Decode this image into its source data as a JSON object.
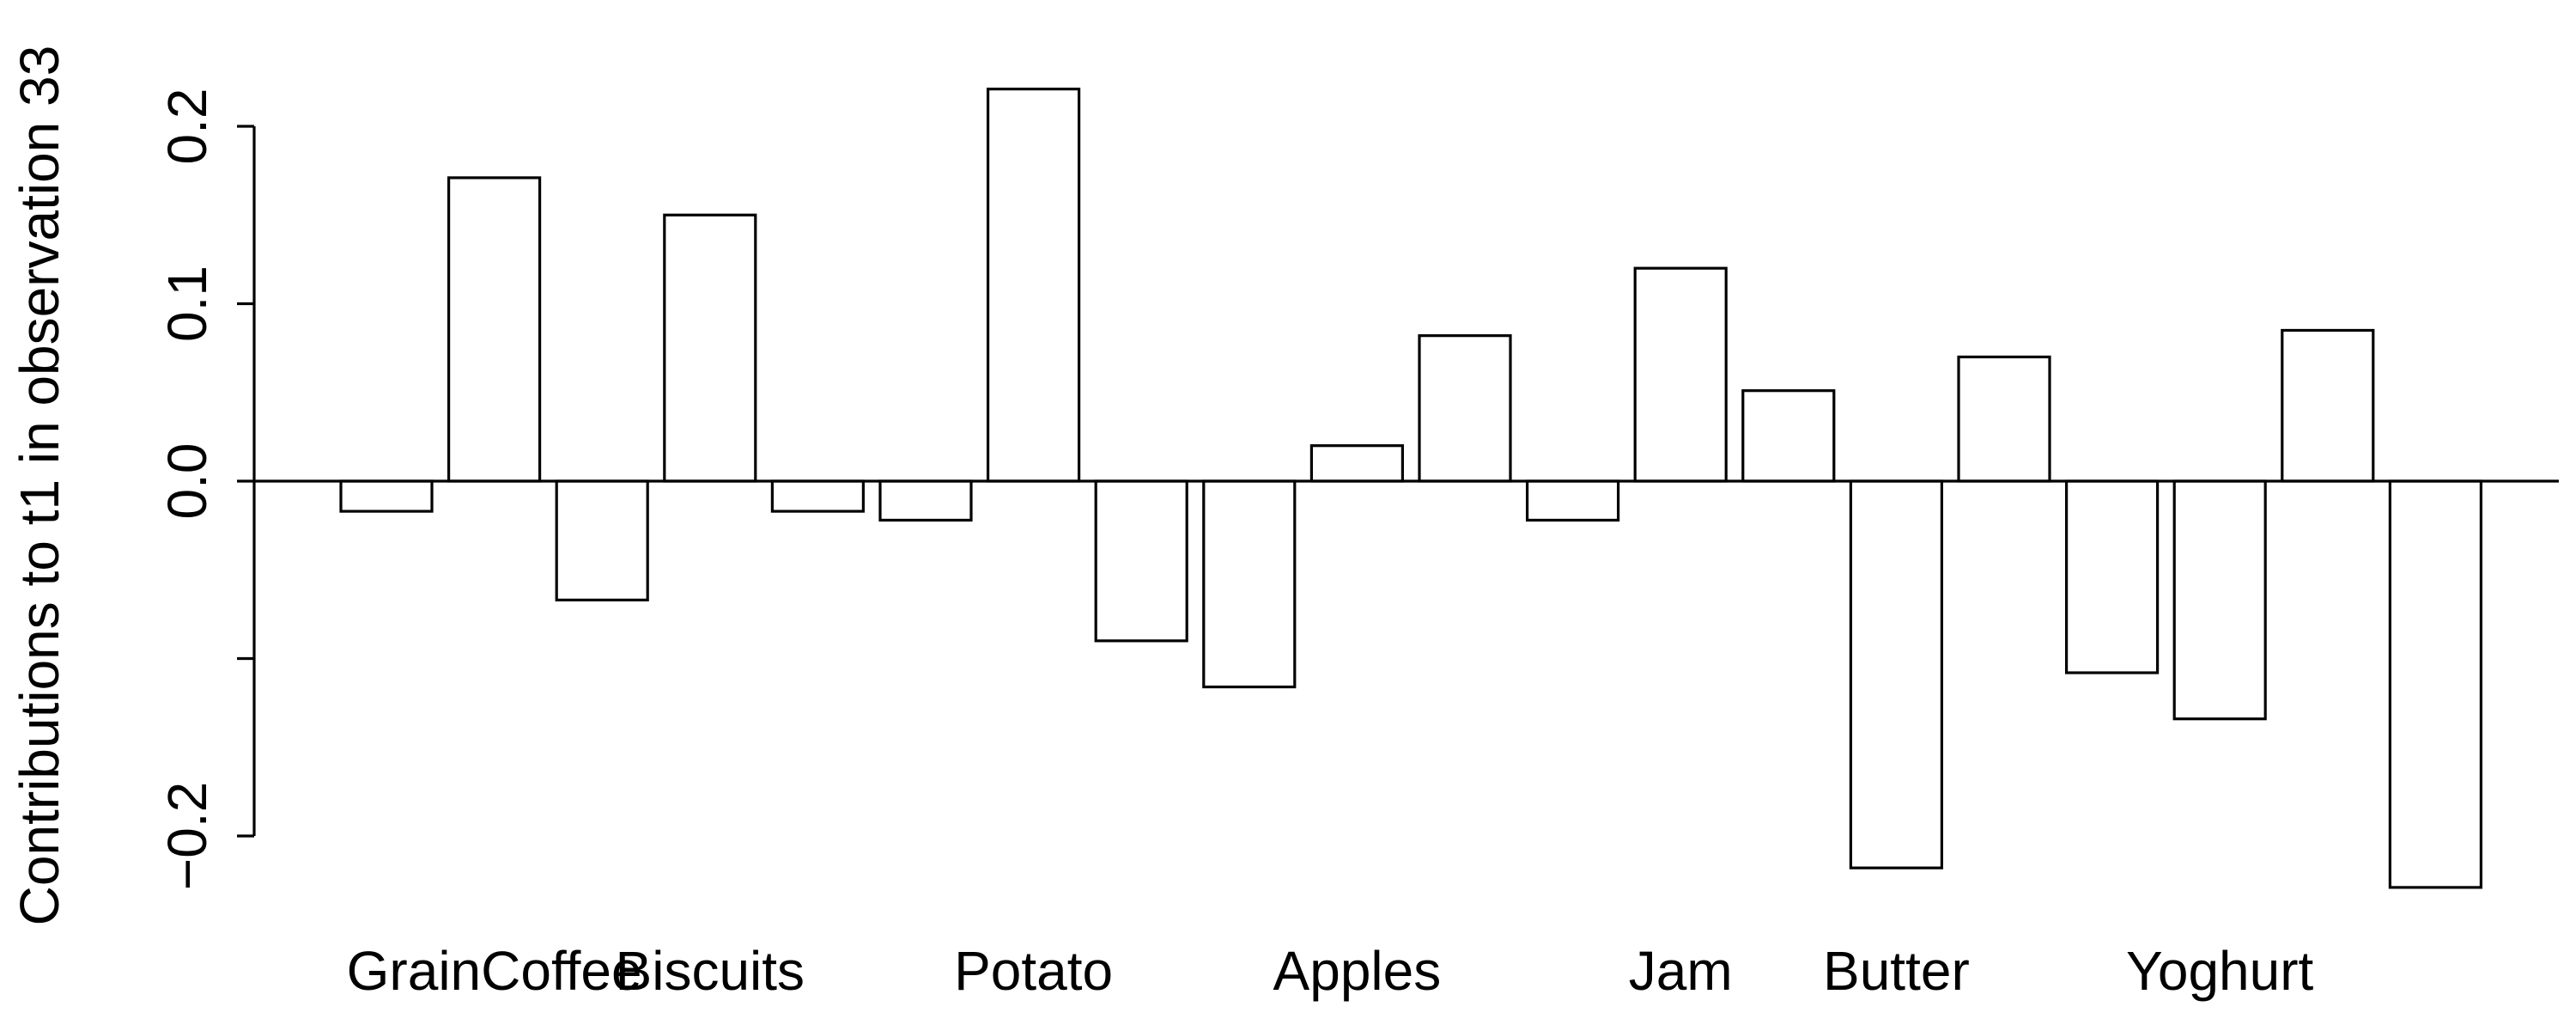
{
  "chart_data": {
    "type": "bar",
    "ylabel": "Contributions to t1 in observation 33",
    "xlabel": "",
    "title": "",
    "ylim": [
      -0.24,
      0.24
    ],
    "yticks": [
      0.2,
      0.1,
      0.0,
      -0.1,
      -0.2
    ],
    "ytick_labels": [
      "0.2",
      "0.1",
      "0.0",
      "",
      "−0.2"
    ],
    "categories": [
      "",
      "GrainCoffee",
      "",
      "Biscuits",
      "",
      "",
      "Potato",
      "",
      "",
      "Apples",
      "",
      "",
      "Jam",
      "",
      "Butter",
      "",
      "",
      "Yoghurt",
      "",
      ""
    ],
    "values": [
      -0.017,
      0.171,
      -0.067,
      0.15,
      -0.017,
      -0.022,
      0.221,
      -0.09,
      -0.116,
      0.02,
      0.082,
      -0.022,
      0.12,
      0.051,
      -0.218,
      0.07,
      -0.108,
      -0.134,
      0.085,
      -0.229
    ],
    "bar_fill": "#ffffff",
    "bar_stroke": "#000000",
    "grid": false,
    "legend": "none"
  }
}
